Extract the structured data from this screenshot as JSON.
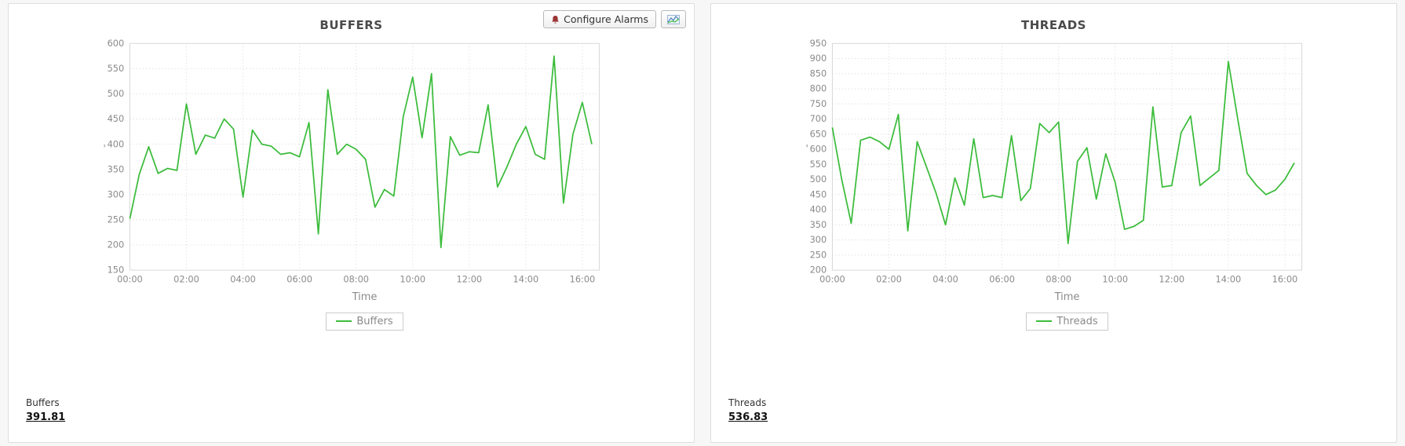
{
  "toolbar": {
    "configure_alarms_label": "Configure Alarms"
  },
  "icons": {
    "alarm_icon": "bell",
    "options_icon": "line-chart",
    "legend_swatch": "green-line-segment"
  },
  "colors": {
    "series_green": "#3cbc3c",
    "grid": "#d9d9d9",
    "axis_text": "#8a8a8a"
  },
  "panels": [
    {
      "metric_label": "Buffers",
      "metric_value": "391.81"
    },
    {
      "metric_label": "Threads",
      "metric_value": "536.83"
    }
  ],
  "chart_data": [
    {
      "type": "line",
      "title": "BUFFERS",
      "xlabel": "Time",
      "ylabel": "",
      "y_axis_mark": "'",
      "x_step_minutes": 20,
      "x_ticks": [
        "00:00",
        "02:00",
        "04:00",
        "06:00",
        "08:00",
        "10:00",
        "12:00",
        "14:00",
        "16:00"
      ],
      "x_tick_hours": [
        0,
        2,
        4,
        6,
        8,
        10,
        12,
        14,
        16
      ],
      "x_max_hours": 16.6,
      "ylim": [
        150,
        600
      ],
      "y_tick_step": 50,
      "grid": true,
      "legend_position": "bottom",
      "series": [
        {
          "name": "Buffers",
          "color": "#3cbc3c",
          "values": [
            252,
            340,
            395,
            342,
            352,
            348,
            480,
            380,
            418,
            412,
            450,
            430,
            295,
            428,
            400,
            396,
            380,
            383,
            375,
            443,
            222,
            508,
            380,
            400,
            390,
            370,
            275,
            310,
            297,
            455,
            533,
            413,
            540,
            195,
            415,
            378,
            385,
            383,
            478,
            315,
            355,
            400,
            435,
            380,
            370,
            575,
            283,
            420,
            483,
            400
          ]
        }
      ]
    },
    {
      "type": "line",
      "title": "THREADS",
      "xlabel": "Time",
      "ylabel": "",
      "y_axis_mark": "'",
      "x_step_minutes": 20,
      "x_ticks": [
        "00:00",
        "02:00",
        "04:00",
        "06:00",
        "08:00",
        "10:00",
        "12:00",
        "14:00",
        "16:00"
      ],
      "x_tick_hours": [
        0,
        2,
        4,
        6,
        8,
        10,
        12,
        14,
        16
      ],
      "x_max_hours": 16.6,
      "ylim": [
        200,
        950
      ],
      "y_tick_step": 50,
      "grid": true,
      "legend_position": "bottom",
      "series": [
        {
          "name": "Threads",
          "color": "#3cbc3c",
          "values": [
            672,
            500,
            355,
            630,
            640,
            625,
            600,
            715,
            330,
            625,
            540,
            455,
            350,
            505,
            415,
            635,
            440,
            447,
            440,
            645,
            430,
            470,
            685,
            655,
            690,
            288,
            560,
            605,
            435,
            585,
            490,
            335,
            345,
            365,
            740,
            475,
            480,
            655,
            710,
            480,
            505,
            530,
            890,
            700,
            520,
            480,
            450,
            465,
            500,
            555
          ]
        }
      ]
    }
  ]
}
